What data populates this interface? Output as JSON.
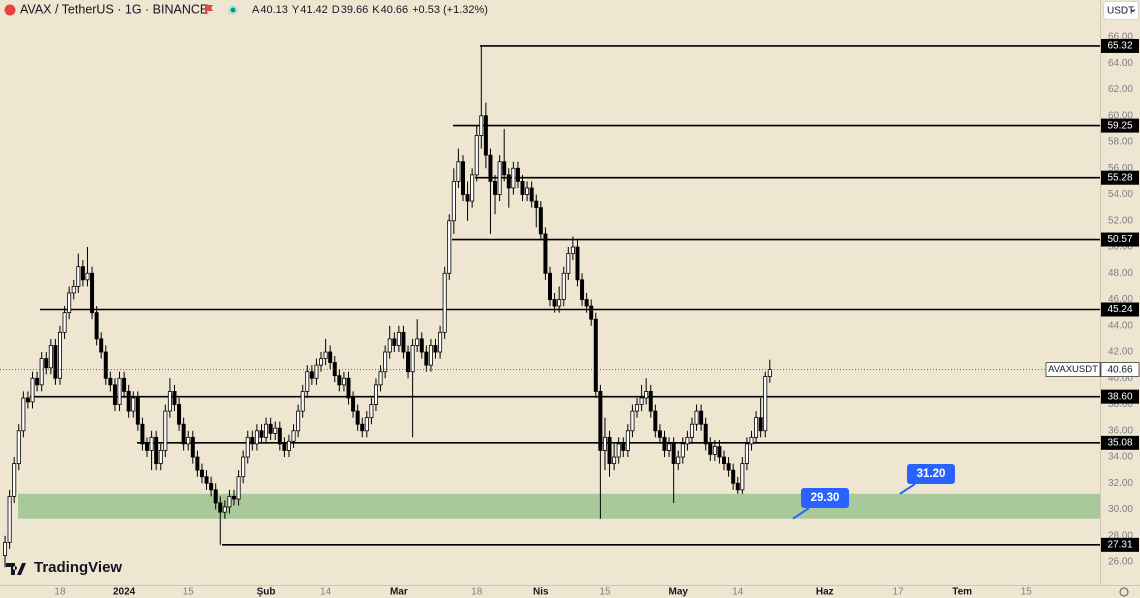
{
  "chart_data": {
    "type": "candlestick",
    "title": "AVAX / TetherUS · 1G · BINANCE",
    "ohlc_labels": [
      "A",
      "Y",
      "D",
      "K"
    ],
    "change": "+0.53 (+1.32%)",
    "symbol": "AVAXUSDT",
    "currency": "USDT",
    "brand": "TradingView",
    "up_color": "#ffffff",
    "down_color": "#000000",
    "zone_color": "#a9c99a",
    "callout_color": "#2962ff",
    "background": "#efe6d1",
    "open": [
      26.5,
      27.5,
      31,
      33.5,
      36,
      38.5,
      38.2,
      40,
      39.5,
      41.5,
      40.8,
      42.5,
      40,
      43.5,
      45,
      46.5,
      47,
      48.5,
      47.5,
      48,
      45,
      43,
      42,
      40,
      39.5,
      38,
      40,
      39,
      37.5,
      38.5,
      36.5,
      35,
      34.5,
      35.5,
      33.5,
      34.5,
      37.5,
      39,
      38,
      36.5,
      35,
      35.5,
      34,
      33,
      32.5,
      32,
      31.5,
      30.5,
      29.8,
      30.2,
      31,
      30.8,
      32.5,
      34,
      35.5,
      35,
      36,
      35.5,
      36.5,
      35.8,
      36.2,
      35,
      34.5,
      35.2,
      36,
      37.5,
      39,
      40.5,
      40,
      41,
      41.5,
      42,
      41.2,
      40.2,
      39.5,
      40,
      38.5,
      37.5,
      36.5,
      36,
      37,
      38,
      39.5,
      40.5,
      42,
      43,
      42.5,
      43.5,
      42,
      40.5,
      42.5,
      43,
      42,
      41,
      42.5,
      42,
      43.5,
      48,
      52,
      55,
      56.5,
      54,
      53.5,
      55.5,
      58.5,
      60,
      57,
      55,
      54,
      56.5,
      55.5,
      54.5,
      56,
      55,
      54,
      54.5,
      53.5,
      53,
      51,
      48,
      46,
      45.5,
      46,
      48,
      49.5,
      50,
      47.5,
      46,
      45.5,
      44.5,
      39,
      34.5,
      35.5,
      33.5,
      34,
      35,
      34.5,
      36,
      37.5,
      38,
      38.5,
      39,
      37.5,
      36,
      35.5,
      34.5,
      35,
      33.5,
      34,
      35,
      35.5,
      36.5,
      37.5,
      36.5,
      35,
      34.2,
      34.8,
      34,
      33.5,
      33,
      32,
      31.5,
      33.5,
      35,
      35.5,
      37,
      36,
      40.13
    ],
    "high": [
      28,
      31.5,
      34,
      36.5,
      39,
      39,
      40.5,
      40.5,
      42,
      42,
      43,
      43,
      44,
      45.5,
      47,
      47.5,
      49.5,
      49,
      50,
      48.5,
      45.5,
      43.5,
      42.5,
      40.5,
      40,
      40.5,
      40.5,
      39.5,
      39,
      39,
      37,
      35.5,
      36,
      36,
      35,
      38,
      40,
      39.5,
      38.5,
      37,
      36,
      36,
      34.5,
      33.5,
      33,
      32.5,
      32,
      31,
      30.7,
      31.5,
      31.5,
      33,
      34.5,
      36,
      36,
      36.5,
      36.5,
      37,
      37,
      36.7,
      36.7,
      35.5,
      35.7,
      36.5,
      38,
      39.5,
      41,
      41,
      41.5,
      42,
      43,
      42.5,
      41.7,
      40.7,
      40.5,
      40.5,
      39,
      38,
      37,
      37.5,
      38.5,
      40,
      41,
      42.5,
      44,
      43.5,
      44,
      44,
      42.5,
      43,
      44.5,
      43.5,
      42.5,
      43,
      43,
      44,
      48.5,
      52.5,
      56,
      57.5,
      57,
      55,
      56,
      59.25,
      65.32,
      61,
      57.5,
      55.5,
      57,
      59,
      56,
      56.5,
      56.5,
      55.5,
      55,
      55,
      54,
      53.5,
      51.5,
      48.5,
      46.5,
      47,
      48.5,
      50,
      50.8,
      50.5,
      48,
      46.5,
      46,
      45,
      39.5,
      37,
      36,
      35,
      35.5,
      35.5,
      36.5,
      38,
      38.5,
      39.5,
      40,
      39.5,
      38,
      36.5,
      36,
      35.5,
      35.5,
      34.5,
      35.5,
      36,
      37,
      38,
      38,
      37,
      35.5,
      35.3,
      35.3,
      34.5,
      34,
      33.5,
      32.5,
      34,
      35.5,
      36,
      37.5,
      38.5,
      40.5,
      41.42
    ],
    "low": [
      25.6,
      27,
      30.5,
      33,
      35.5,
      37.7,
      37.7,
      39,
      39,
      40.3,
      40.3,
      39.5,
      39.5,
      43,
      44.5,
      46,
      46.5,
      47,
      47,
      44.5,
      42.5,
      41.5,
      39.5,
      39,
      37.5,
      37.5,
      38.5,
      37,
      37,
      36,
      34.5,
      34,
      33,
      33,
      33,
      34,
      37,
      37.5,
      36,
      34.5,
      34.5,
      33.5,
      32.5,
      32,
      31.5,
      31,
      30,
      27.31,
      29.3,
      29.7,
      30.3,
      30.3,
      32,
      33.5,
      34.5,
      34.5,
      35,
      35,
      35.3,
      35.3,
      34.5,
      34,
      34,
      34.7,
      35.5,
      37,
      38.5,
      39.5,
      39.5,
      40.5,
      41,
      40.7,
      39.7,
      39,
      39,
      38,
      37,
      36,
      35.5,
      35.5,
      36.5,
      37.5,
      39,
      40,
      41.5,
      42,
      42,
      41.5,
      40,
      35.5,
      42,
      41.5,
      40.5,
      40.5,
      41.5,
      41.5,
      43,
      47.5,
      51,
      54.5,
      53.5,
      52,
      53,
      55,
      57.5,
      56,
      51,
      52.5,
      53.5,
      55,
      53,
      54,
      54.5,
      53.5,
      53.5,
      53,
      51.5,
      50.5,
      47.5,
      45.5,
      45,
      45,
      45.5,
      47.5,
      49,
      47,
      45.5,
      45,
      44,
      38.5,
      29.3,
      33,
      32.5,
      33,
      33.5,
      34,
      34,
      35.5,
      37,
      37.5,
      38,
      37,
      35.5,
      35,
      34,
      34,
      30.5,
      33,
      33.5,
      34.5,
      35,
      36,
      36,
      34.5,
      33.7,
      33.7,
      33.5,
      33,
      32.5,
      31.5,
      31.2,
      31.2,
      33,
      34.5,
      35,
      35.5,
      35.5,
      39.66
    ],
    "close": [
      27.5,
      31,
      33.5,
      36,
      38.5,
      38.2,
      40,
      39.5,
      41.5,
      40.8,
      42.5,
      40,
      43.5,
      45,
      46.5,
      47,
      48.5,
      47.5,
      48,
      45,
      43,
      42,
      40,
      39.5,
      38,
      40,
      39,
      37.5,
      38.5,
      36.5,
      35,
      34.5,
      35.5,
      33.5,
      34.5,
      37.5,
      39,
      38,
      36.5,
      35,
      35.5,
      34,
      33,
      32.5,
      32,
      31.5,
      30.5,
      29.8,
      30.2,
      31,
      30.8,
      32.5,
      34,
      35.5,
      35,
      36,
      35.5,
      36.5,
      35.8,
      36.2,
      35,
      34.5,
      35.2,
      36,
      37.5,
      39,
      40.5,
      40,
      41,
      41.5,
      42,
      41.2,
      40.2,
      39.5,
      40,
      38.5,
      37.5,
      36.5,
      36,
      37,
      38,
      39.5,
      40.5,
      42,
      43,
      42.5,
      43.5,
      42,
      40.5,
      42.5,
      43,
      42,
      41,
      42.5,
      42,
      43.5,
      48,
      52,
      55,
      56.5,
      54,
      53.5,
      55.5,
      58.5,
      60,
      57,
      55,
      54,
      56.5,
      55.5,
      54.5,
      56,
      55,
      54,
      54.5,
      53.5,
      53,
      51,
      48,
      46,
      45.5,
      46,
      48,
      49.5,
      50,
      47.5,
      46,
      45.5,
      44.5,
      39,
      34.5,
      35.5,
      33.5,
      34,
      35,
      34.5,
      36,
      37.5,
      38,
      38.5,
      39,
      37.5,
      36,
      35.5,
      34.5,
      35,
      33.5,
      34,
      35,
      35.5,
      36.5,
      37.5,
      36.5,
      35,
      34.2,
      34.8,
      34,
      33.5,
      33,
      32,
      31.5,
      33.5,
      35,
      35.5,
      37,
      36,
      40.13,
      40.66
    ],
    "xlim": [
      -1.1,
      239.1
    ],
    "xticks": [
      {
        "value": 12,
        "label": "18"
      },
      {
        "value": 26,
        "label": "2024"
      },
      {
        "value": 40,
        "label": "15"
      },
      {
        "value": 57,
        "label": "Şub"
      },
      {
        "value": 70,
        "label": "14"
      },
      {
        "value": 86,
        "label": "Mar"
      },
      {
        "value": 103,
        "label": "18"
      },
      {
        "value": 117,
        "label": "Nis"
      },
      {
        "value": 131,
        "label": "15"
      },
      {
        "value": 147,
        "label": "May"
      },
      {
        "value": 160,
        "label": "14"
      },
      {
        "value": 179,
        "label": "Haz"
      },
      {
        "value": 195,
        "label": "17"
      },
      {
        "value": 209,
        "label": "Tem"
      },
      {
        "value": 223,
        "label": "15"
      }
    ],
    "ylim": [
      24.25,
      68.82
    ],
    "yticks": [
      {
        "value": 26,
        "label": "26.00"
      },
      {
        "value": 28,
        "label": "28.00"
      },
      {
        "value": 30,
        "label": "30.00"
      },
      {
        "value": 32,
        "label": "32.00"
      },
      {
        "value": 34,
        "label": "34.00"
      },
      {
        "value": 36,
        "label": "36.00"
      },
      {
        "value": 38,
        "label": "38.00"
      },
      {
        "value": 40,
        "label": "40.00"
      },
      {
        "value": 42,
        "label": "42.00"
      },
      {
        "value": 44,
        "label": "44.00"
      },
      {
        "value": 46,
        "label": "46.00"
      },
      {
        "value": 48,
        "label": "48.00"
      },
      {
        "value": 50,
        "label": "50.00"
      },
      {
        "value": 52,
        "label": "52.00"
      },
      {
        "value": 54,
        "label": "54.00"
      },
      {
        "value": 56,
        "label": "56.00"
      },
      {
        "value": 58,
        "label": "58.00"
      },
      {
        "value": 60,
        "label": "60.00"
      },
      {
        "value": 62,
        "label": "62.00"
      },
      {
        "value": 64,
        "label": "64.00"
      },
      {
        "value": 66,
        "label": "66.00"
      }
    ],
    "levels": [
      65.32,
      {
        "value": 59.25,
        "label": "59.25"
      },
      55.28,
      50.57,
      45.24,
      {
        "value": 38.6,
        "label": "38.60"
      },
      35.08,
      27.31
    ],
    "zone": {
      "low": {
        "value": 29.3,
        "label": "29.30"
      },
      "high": {
        "value": 31.2,
        "label": "31.20"
      }
    }
  }
}
